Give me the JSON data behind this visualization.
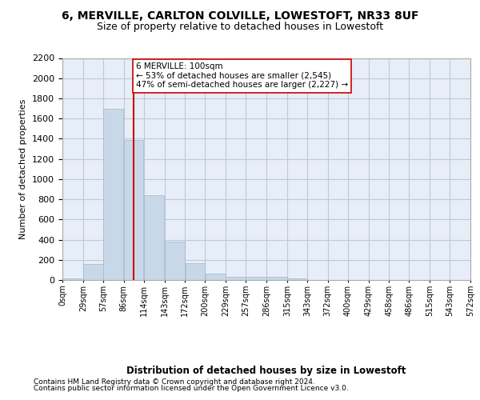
{
  "title1": "6, MERVILLE, CARLTON COLVILLE, LOWESTOFT, NR33 8UF",
  "title2": "Size of property relative to detached houses in Lowestoft",
  "xlabel": "Distribution of detached houses by size in Lowestoft",
  "ylabel": "Number of detached properties",
  "bar_values": [
    15,
    155,
    1700,
    1390,
    840,
    380,
    165,
    65,
    35,
    28,
    28,
    15,
    0,
    0,
    0,
    0,
    0,
    0,
    0,
    0
  ],
  "bar_edges": [
    0,
    29,
    57,
    86,
    114,
    143,
    172,
    200,
    229,
    257,
    286,
    315,
    343,
    372,
    400,
    429,
    458,
    486,
    515,
    543,
    572
  ],
  "tick_labels": [
    "0sqm",
    "29sqm",
    "57sqm",
    "86sqm",
    "114sqm",
    "143sqm",
    "172sqm",
    "200sqm",
    "229sqm",
    "257sqm",
    "286sqm",
    "315sqm",
    "343sqm",
    "372sqm",
    "400sqm",
    "429sqm",
    "458sqm",
    "486sqm",
    "515sqm",
    "543sqm",
    "572sqm"
  ],
  "bar_color": "#c8d8e8",
  "bar_edge_color": "#a0b8cc",
  "vline_x": 100,
  "vline_color": "#cc0000",
  "annotation_text": "6 MERVILLE: 100sqm\n← 53% of detached houses are smaller (2,545)\n47% of semi-detached houses are larger (2,227) →",
  "annotation_box_color": "#ffffff",
  "annotation_box_edge": "#cc0000",
  "ylim": [
    0,
    2200
  ],
  "yticks": [
    0,
    200,
    400,
    600,
    800,
    1000,
    1200,
    1400,
    1600,
    1800,
    2000,
    2200
  ],
  "grid_color": "#c0c8d8",
  "bg_color": "#e8eef8",
  "footer1": "Contains HM Land Registry data © Crown copyright and database right 2024.",
  "footer2": "Contains public sector information licensed under the Open Government Licence v3.0."
}
